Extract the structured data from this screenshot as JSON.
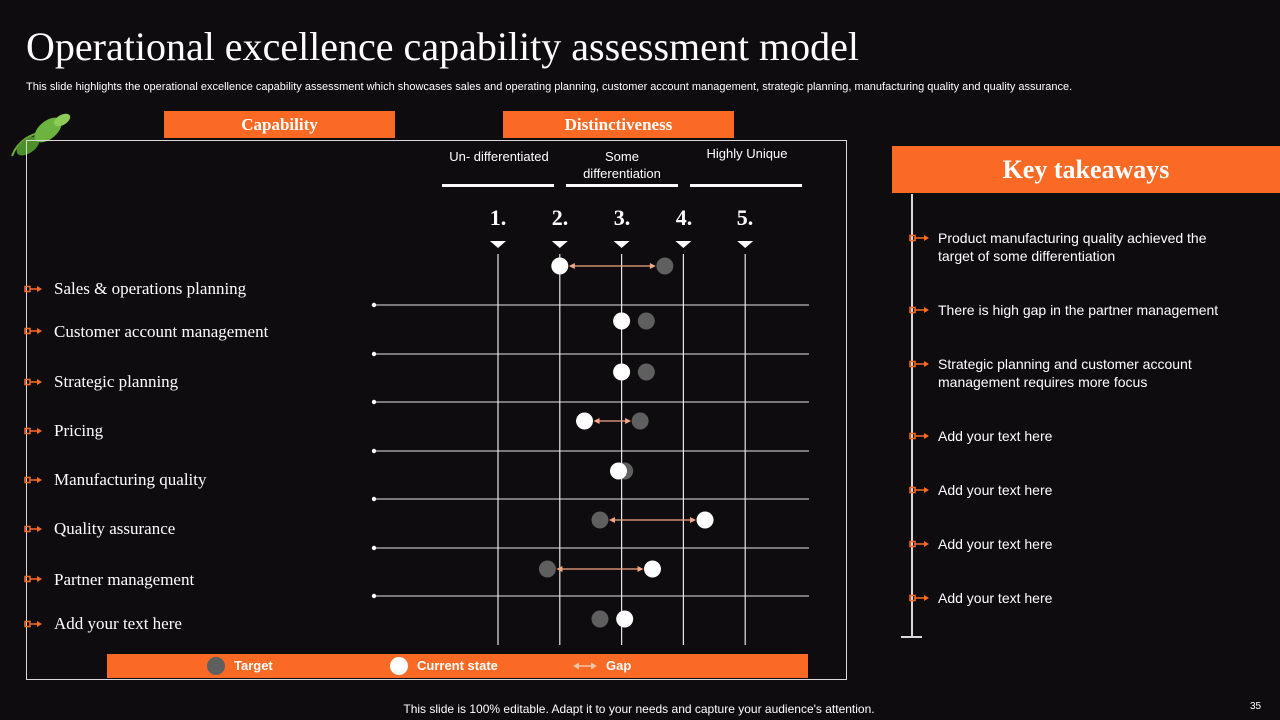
{
  "title": "Operational excellence capability assessment model",
  "subtitle": "This slide highlights the operational excellence capability assessment which showcases sales and operating planning, customer account management, strategic planning, manufacturing quality and quality assurance.",
  "headers": {
    "capability": "Capability",
    "distinctiveness": "Distinctiveness"
  },
  "columns": [
    {
      "label": "Un- differentiated"
    },
    {
      "label": "Some differentiation"
    },
    {
      "label": "Highly Unique"
    }
  ],
  "scale": [
    "1.",
    "2.",
    "3.",
    "4.",
    "5."
  ],
  "rows": [
    {
      "label": "Sales & operations planning",
      "current": 2.0,
      "target": 3.7
    },
    {
      "label": "Customer account management",
      "current": 3.0,
      "target": 3.4
    },
    {
      "label": "Strategic planning",
      "current": 3.0,
      "target": 3.4
    },
    {
      "label": "Pricing",
      "current": 2.4,
      "target": 3.3
    },
    {
      "label": "Manufacturing  quality",
      "current": 2.95,
      "target": 3.05
    },
    {
      "label": "Quality  assurance",
      "current": 4.35,
      "target": 2.65
    },
    {
      "label": "Partner management",
      "current": 3.5,
      "target": 1.8
    },
    {
      "label": "Add your text here",
      "current": 3.05,
      "target": 2.65
    }
  ],
  "legend": {
    "target": "Target",
    "current": "Current state",
    "gap": "Gap"
  },
  "key_takeaways": {
    "title": "Key takeaways",
    "items": [
      "Product manufacturing quality achieved the target of some differentiation",
      "There is high gap in the partner management",
      "Strategic planning and customer account management requires more focus",
      "Add your text here",
      "Add your text here",
      "Add your text here",
      "Add your text here"
    ]
  },
  "footer": "This slide is 100% editable. Adapt it to your needs and capture your audience's attention.",
  "page_number": "35",
  "colors": {
    "accent": "#fb6a25",
    "background": "#0f0c0f",
    "target_dot": "#5f5f5f",
    "current_dot": "#ffffff",
    "gap_arrow": "#f4a582"
  },
  "icons": {
    "decoration": "leaf-icon",
    "bullet": "arrow-bullet-icon",
    "gap": "double-arrow-icon"
  }
}
